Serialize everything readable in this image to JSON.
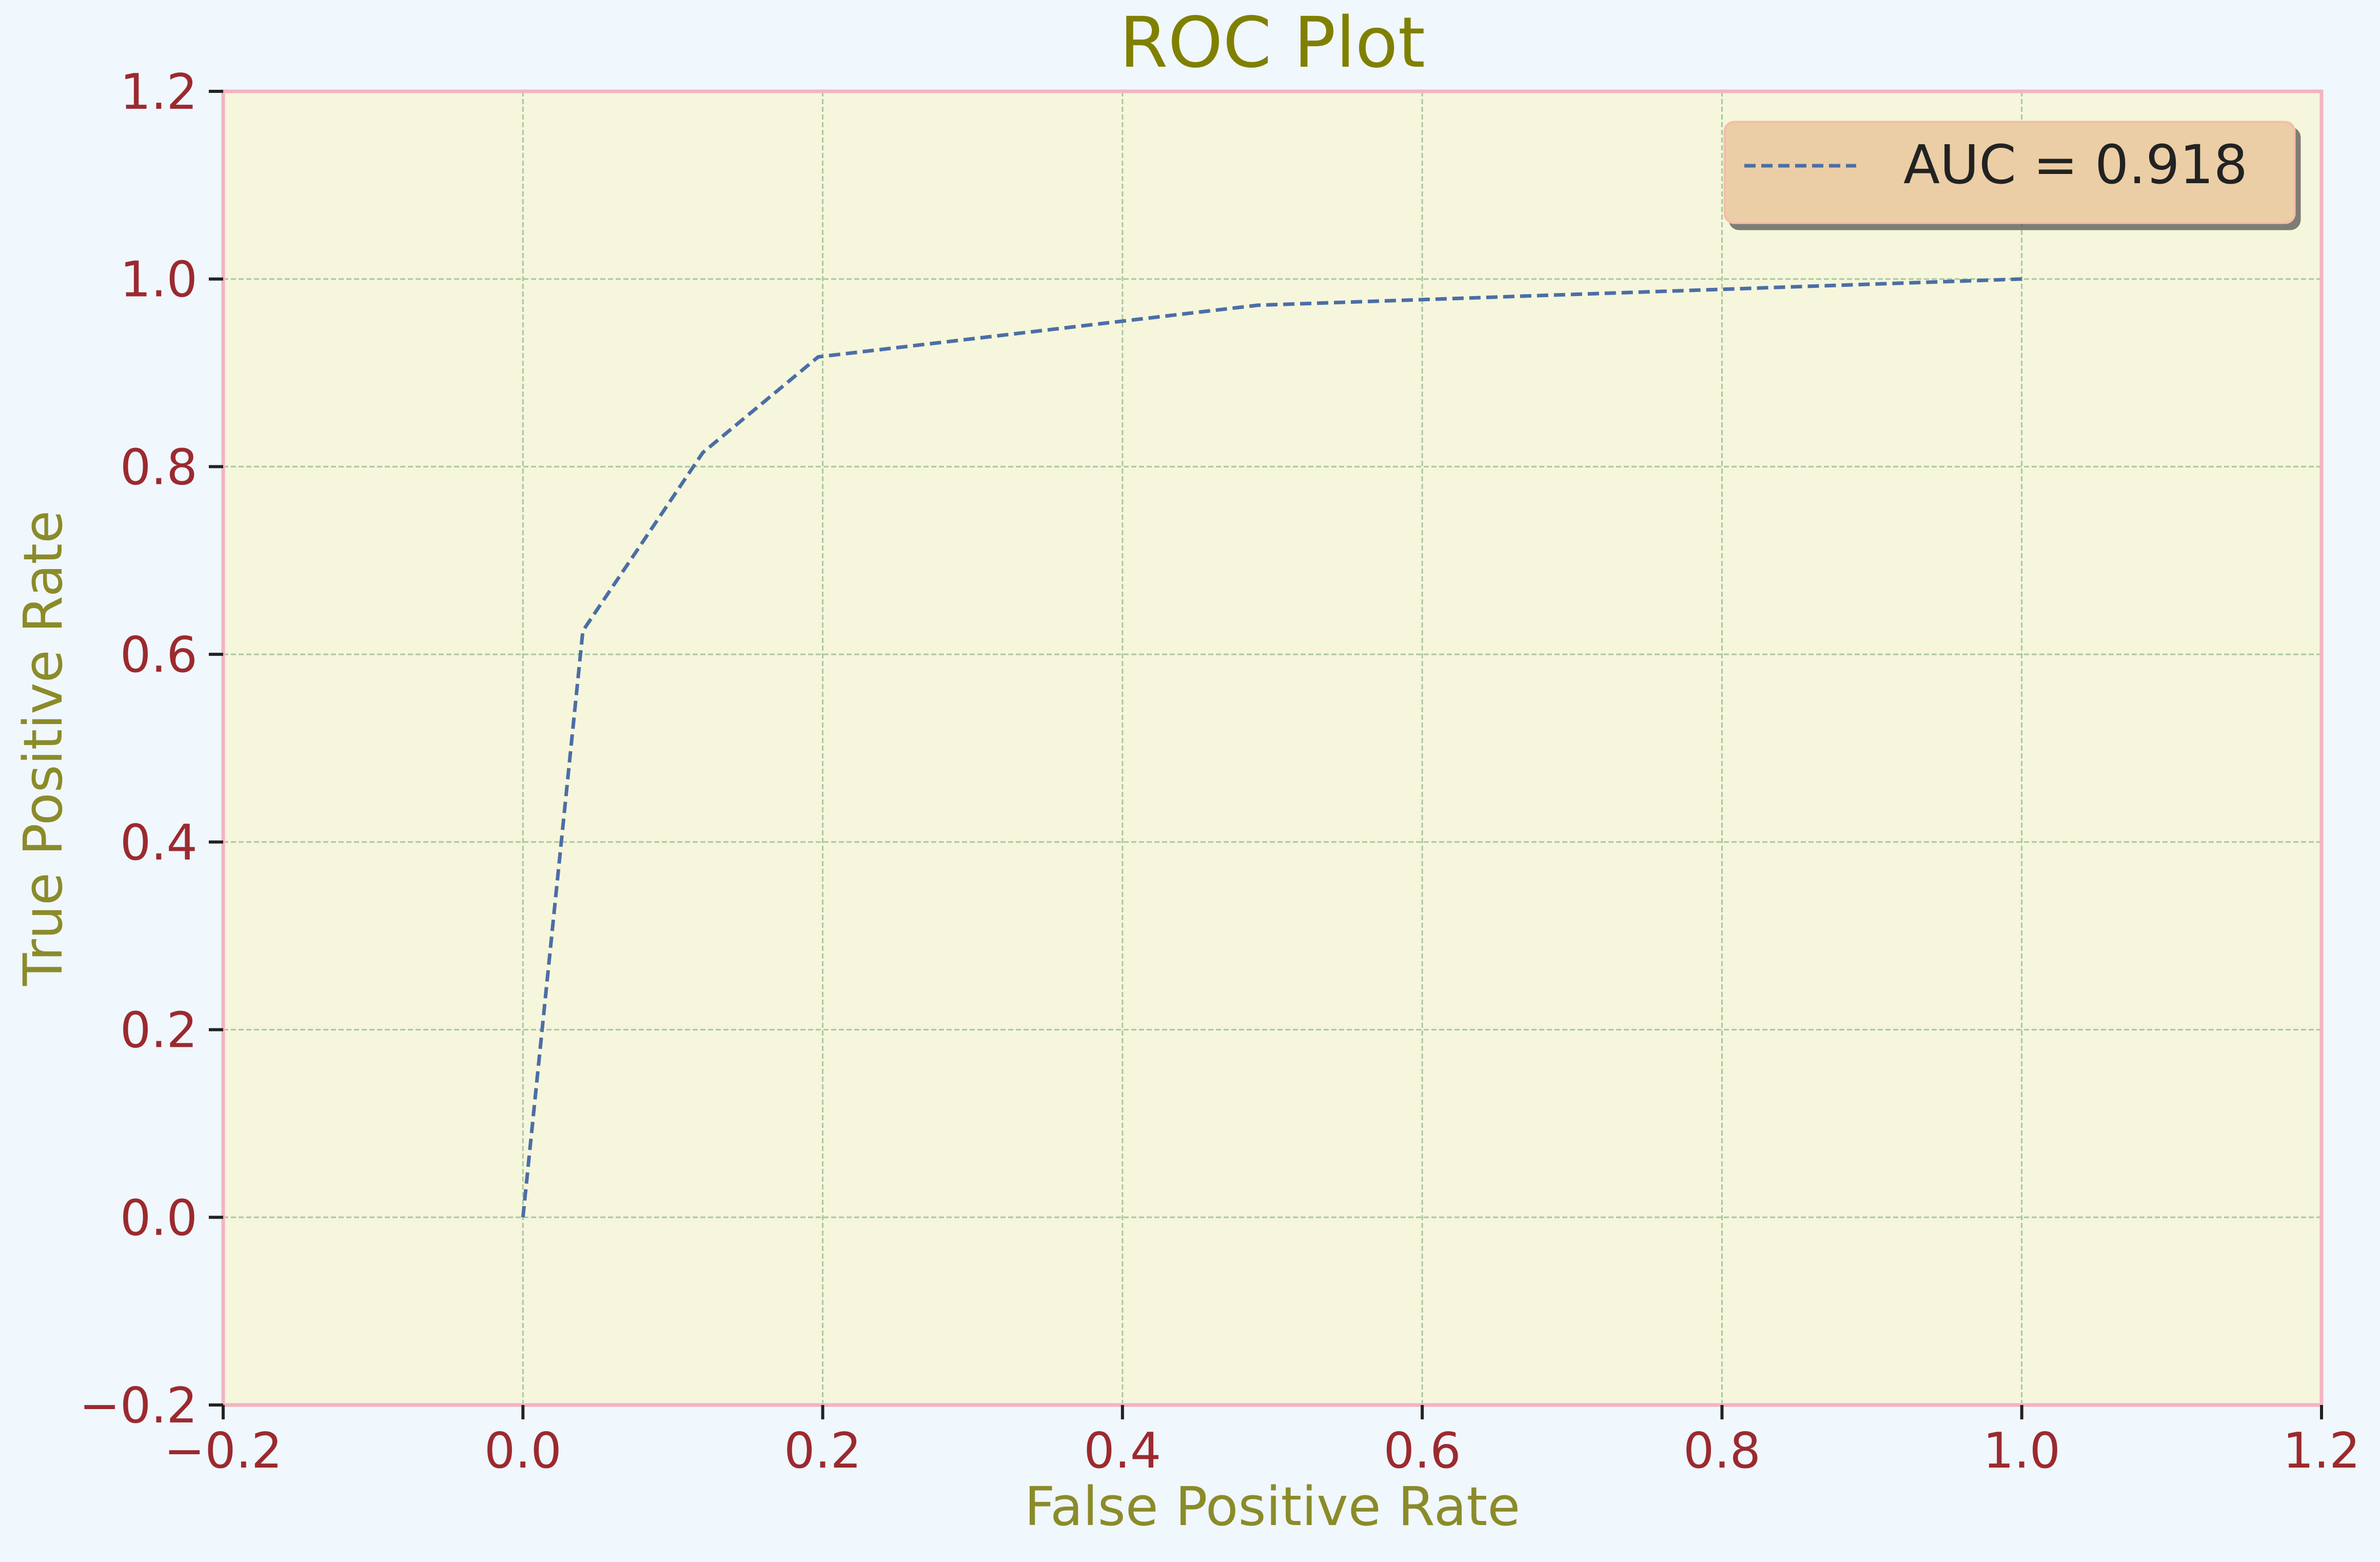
{
  "chart_data": {
    "type": "line",
    "title": "ROC Plot",
    "xlabel": "False Positive Rate",
    "ylabel": "True Positive Rate",
    "xlim": [
      -0.2,
      1.2
    ],
    "ylim": [
      -0.2,
      1.2
    ],
    "xticks": [
      -0.2,
      0.0,
      0.2,
      0.4,
      0.6,
      0.8,
      1.0,
      1.2
    ],
    "yticks": [
      -0.2,
      0.0,
      0.2,
      0.4,
      0.6,
      0.8,
      1.0,
      1.2
    ],
    "xtick_labels": [
      "−0.2",
      "0.0",
      "0.2",
      "0.4",
      "0.6",
      "0.8",
      "1.0",
      "1.2"
    ],
    "ytick_labels": [
      "−0.2",
      "0.0",
      "0.2",
      "0.4",
      "0.6",
      "0.8",
      "1.0",
      "1.2"
    ],
    "grid": true,
    "legend_position": "top-right",
    "series": [
      {
        "name": "AUC = 0.918",
        "line_style": "dashed",
        "color": "#4c6ea6",
        "x": [
          0.0,
          0.04,
          0.12,
          0.197,
          0.49,
          1.0
        ],
        "y": [
          0.0,
          0.625,
          0.815,
          0.917,
          0.972,
          1.0
        ]
      }
    ],
    "colors": {
      "background": "#f0f7fd",
      "plot_background": "#f5f6dc",
      "frame": "#f5b3c0",
      "grid": "#a8c8a0",
      "title": "#808000",
      "axis_label": "#8b8b2a",
      "tick_label": "#9b2a2f",
      "legend_background": "#ebcea6",
      "legend_border": "#f3c0a8",
      "legend_text": "#222222"
    }
  }
}
